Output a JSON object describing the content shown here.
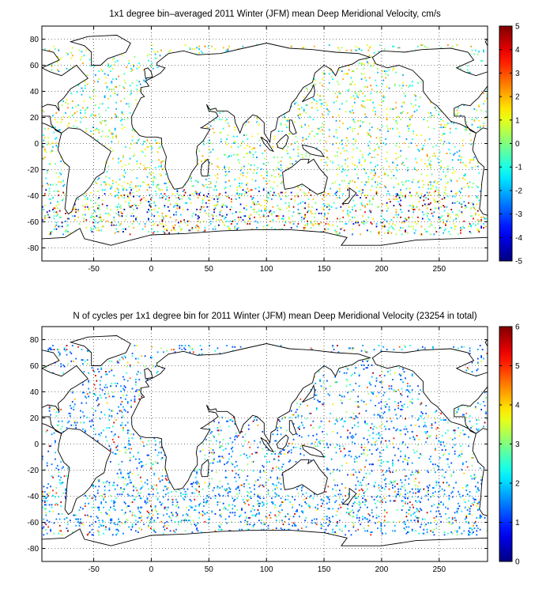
{
  "chart_data": [
    {
      "type": "heatmap",
      "title": "1x1 degree bin–averaged 2011 Winter (JFM) mean Deep Meridional Velocity, cm/s",
      "xlabel": "",
      "ylabel": "",
      "xlim": [
        -95,
        292
      ],
      "ylim": [
        -90,
        90
      ],
      "x_ticks": [
        -50,
        0,
        50,
        100,
        150,
        200,
        250
      ],
      "y_ticks": [
        80,
        60,
        40,
        20,
        0,
        -20,
        -40,
        -60,
        -80
      ],
      "grid": true,
      "colorbar": {
        "min": -5,
        "max": 5,
        "ticks": [
          5,
          4,
          3,
          2,
          1,
          0,
          -1,
          -2,
          -3,
          -4,
          -5
        ],
        "colormap": "jet"
      },
      "data_note_visible": "scattered 1x1 degree ocean bins"
    },
    {
      "type": "heatmap",
      "title": "N of cycles per 1x1 degree bin for 2011 Winter (JFM) mean Deep Meridional Velocity (23254 in total)",
      "xlabel": "",
      "ylabel": "",
      "xlim": [
        -95,
        292
      ],
      "ylim": [
        -90,
        90
      ],
      "x_ticks": [
        -50,
        0,
        50,
        100,
        150,
        200,
        250
      ],
      "y_ticks": [
        80,
        60,
        40,
        20,
        0,
        -20,
        -40,
        -60,
        -80
      ],
      "grid": true,
      "colorbar": {
        "min": 0,
        "max": 6,
        "ticks": [
          6,
          5,
          4,
          3,
          2,
          1,
          0
        ],
        "colormap": "jet"
      }
    }
  ]
}
